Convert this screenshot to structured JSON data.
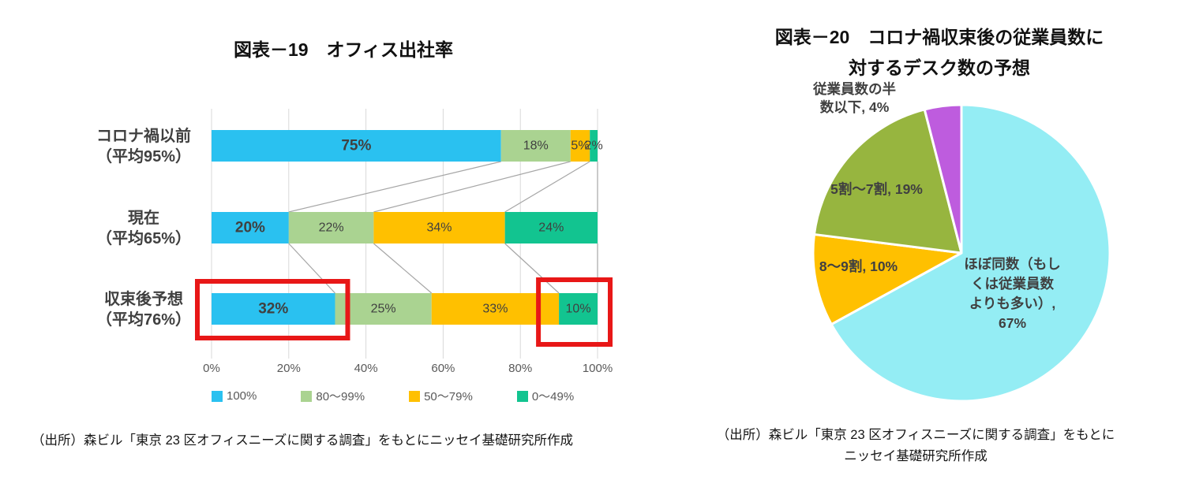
{
  "chart_data": [
    {
      "type": "bar",
      "title": "図表－19　オフィス出社率",
      "orientation": "horizontal",
      "stacked": true,
      "categories": [
        "コロナ禍以前\n（平均95%）",
        "現在\n（平均65%）",
        "収束後予想\n（平均76%）"
      ],
      "series": [
        {
          "name": "100%",
          "color": "#2AC1F0",
          "values": [
            75,
            20,
            32
          ]
        },
        {
          "name": "80〜99%",
          "color": "#AAD391",
          "values": [
            18,
            22,
            25
          ]
        },
        {
          "name": "50〜79%",
          "color": "#FFC000",
          "values": [
            5,
            34,
            33
          ]
        },
        {
          "name": "0〜49%",
          "color": "#12C490",
          "values": [
            2,
            24,
            10
          ]
        }
      ],
      "x_ticks": [
        "0%",
        "20%",
        "40%",
        "60%",
        "80%",
        "100%"
      ],
      "xlim": [
        0,
        100
      ],
      "grid": true,
      "legend_position": "bottom",
      "value_label_suffix": "%",
      "highlights": [
        {
          "category_index": 2,
          "series_index": 0
        },
        {
          "category_index": 2,
          "series_index": 3
        }
      ],
      "highlight_color": "#E81717"
    },
    {
      "type": "pie",
      "title": "図表－20　コロナ禍収束後の従業員数に対するデスク数の予想",
      "start_angle_deg": 0,
      "direction": "clockwise",
      "slices": [
        {
          "label": "ほぼ同数（もしくは従業員数よりも多い）",
          "value": 67,
          "color": "#94EDF4"
        },
        {
          "label": "8〜9割",
          "value": 10,
          "color": "#FFC000"
        },
        {
          "label": "5割〜7割",
          "value": 19,
          "color": "#97B53F"
        },
        {
          "label": "従業員数の半数以下",
          "value": 4,
          "color": "#BE5CDE"
        }
      ]
    }
  ],
  "left_chart": {
    "title": "図表－19　オフィス出社率",
    "source": "（出所）森ビル「東京 23 区オフィスニーズに関する調査」をもとにニッセイ基礎研究所作成"
  },
  "right_chart": {
    "title": "図表－20　コロナ禍収束後の従業員数に\n対するデスク数の予想",
    "labels": {
      "same_count": "ほぼ同数（もし\nくは従業員数\nよりも多い）,\n67%",
      "eight_nine": "8〜9割, 10%",
      "five_seven": "5割〜7割, 19%",
      "half_or_less": "従業員数の半\n数以下, 4%"
    },
    "source": "（出所）森ビル「東京 23 区オフィスニーズに関する調査」をもとに\nニッセイ基礎研究所作成"
  }
}
